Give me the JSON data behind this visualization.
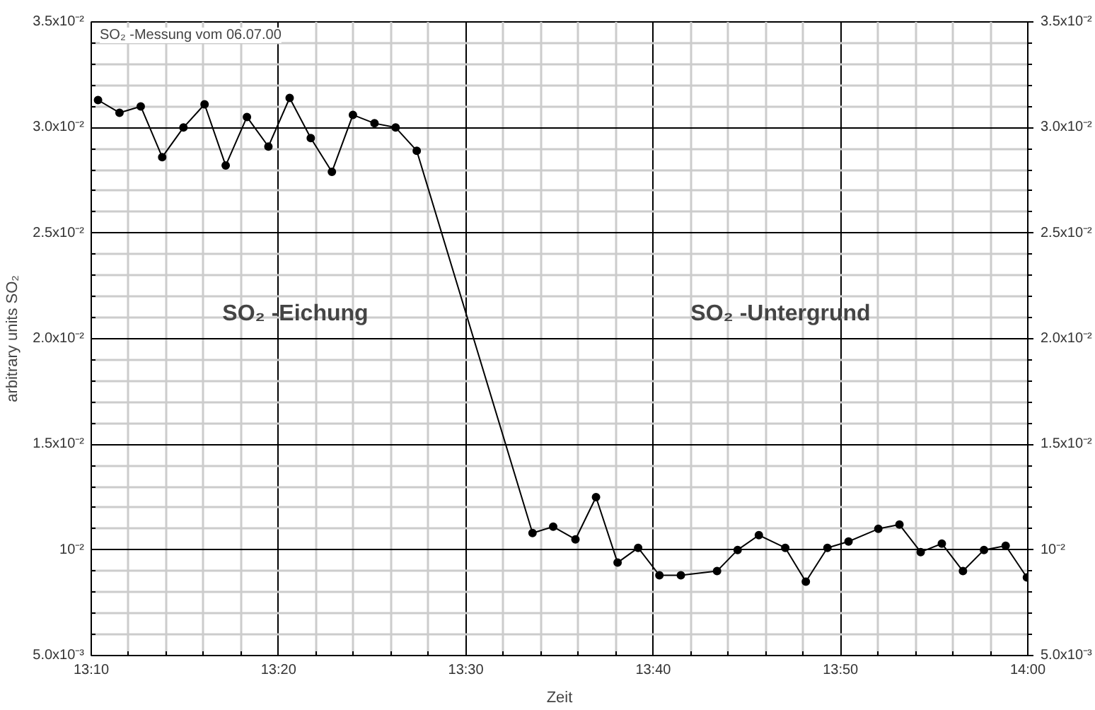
{
  "chart_data": {
    "type": "line",
    "title": "SO₂ -Messung vom 06.07.00",
    "xlabel": "Zeit",
    "ylabel": "arbitrary units SO₂",
    "annotations": [
      "SO₂ -Eichung",
      "SO₂ -Untergrund"
    ],
    "x": [
      13.1727,
      13.1918,
      13.2107,
      13.2298,
      13.2487,
      13.2675,
      13.2863,
      13.3052,
      13.3243,
      13.3432,
      13.362,
      13.3808,
      13.3995,
      13.4187,
      13.4375,
      13.4563,
      13.5593,
      13.5777,
      13.5975,
      13.6158,
      13.635,
      13.6533,
      13.6722,
      13.6913,
      13.7235,
      13.7418,
      13.7607,
      13.7842,
      13.8025,
      13.8217,
      13.8405,
      13.867,
      13.8858,
      13.9047,
      13.9235,
      13.9423,
      13.961,
      13.9803,
      13.9992
    ],
    "series": [
      {
        "color": "#000000",
        "values": [
          0.0313,
          0.0307,
          0.031,
          0.0286,
          0.03,
          0.0311,
          0.0282,
          0.0305,
          0.0291,
          0.0314,
          0.0295,
          0.0279,
          0.0306,
          0.0302,
          0.03,
          0.0289,
          0.0108,
          0.0111,
          0.0105,
          0.0125,
          0.0094,
          0.0101,
          0.0088,
          0.0088,
          0.009,
          0.01,
          0.0107,
          0.0101,
          0.0085,
          0.0101,
          0.0104,
          0.011,
          0.0112,
          0.0099,
          0.0103,
          0.009,
          0.01,
          0.0102,
          0.0087
        ]
      }
    ],
    "xlim": [
      13.16667,
      14.0
    ],
    "xticks": [
      {
        "value": 13.16667,
        "label": "13:10"
      },
      {
        "value": 13.33333,
        "label": "13:20"
      },
      {
        "value": 13.5,
        "label": "13:30"
      },
      {
        "value": 13.66667,
        "label": "13:40"
      },
      {
        "value": 13.83333,
        "label": "13:50"
      },
      {
        "value": 14.0,
        "label": "14:00"
      }
    ],
    "ylim": [
      0.005,
      0.035
    ],
    "yticks": [
      {
        "value": 0.005,
        "label": "5.0x10⁻³"
      },
      {
        "value": 0.01,
        "label": "10⁻²"
      },
      {
        "value": 0.015,
        "label": "1.5x10⁻²"
      },
      {
        "value": 0.02,
        "label": "2.0x10⁻²"
      },
      {
        "value": 0.025,
        "label": "2.5x10⁻²"
      },
      {
        "value": 0.03,
        "label": "3.0x10⁻²"
      },
      {
        "value": 0.035,
        "label": "3.5x10⁻²"
      }
    ],
    "y2lim": [
      0.005,
      0.035
    ],
    "y2ticks": [
      {
        "value": 0.005,
        "label": "5.0x10⁻³"
      },
      {
        "value": 0.01,
        "label": "10⁻²"
      },
      {
        "value": 0.015,
        "label": "1.5x10⁻²"
      },
      {
        "value": 0.02,
        "label": "2.0x10⁻²"
      },
      {
        "value": 0.025,
        "label": "2.5x10⁻²"
      },
      {
        "value": 0.03,
        "label": "3.0x10⁻²"
      },
      {
        "value": 0.035,
        "label": "3.5x10⁻²"
      }
    ],
    "grid": true,
    "marker": "circle",
    "line_style": "solid"
  }
}
